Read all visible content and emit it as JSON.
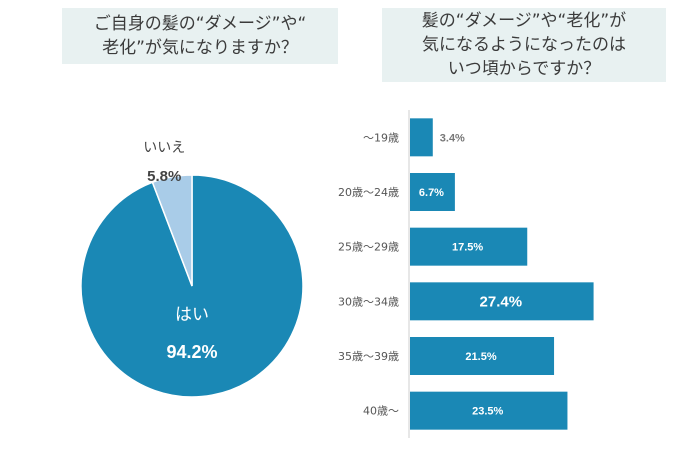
{
  "questions": {
    "q1": [
      "ご自身の髪の“ダメージ”や“",
      "老化”が気になりますか？"
    ],
    "q2": [
      "髪の“ダメージ”や“老化”が",
      "気になるようになったのは",
      "いつ頃からですか？"
    ]
  },
  "chart_data": [
    {
      "type": "pie",
      "categories": [
        "はい",
        "いいえ"
      ],
      "values": [
        94.2,
        5.8
      ],
      "value_labels": [
        "94.2%",
        "5.8%"
      ],
      "colors": [
        "#1a88b5",
        "#a9cce8"
      ]
    },
    {
      "type": "bar",
      "orientation": "horizontal",
      "categories": [
        "〜19歳",
        "20歳〜24歳",
        "25歳〜29歳",
        "30歳〜34歳",
        "35歳〜39歳",
        "40歳〜"
      ],
      "values": [
        3.4,
        6.7,
        17.5,
        27.4,
        21.5,
        23.5
      ],
      "value_labels": [
        "3.4%",
        "6.7%",
        "17.5%",
        "27.4%",
        "21.5%",
        "23.5%"
      ],
      "color": "#1a88b5"
    }
  ]
}
